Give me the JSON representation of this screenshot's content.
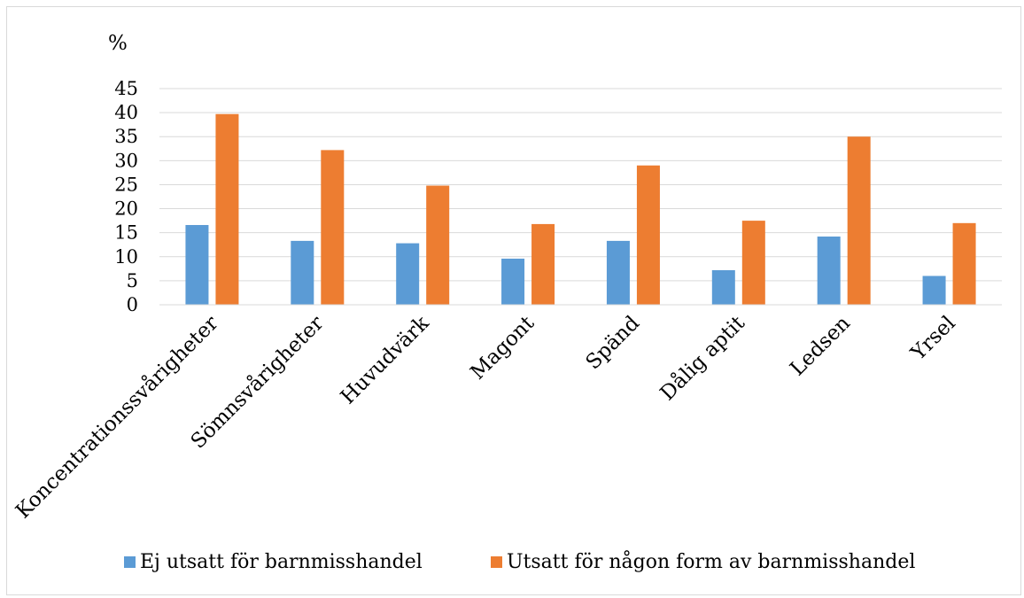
{
  "chart_data": {
    "type": "bar",
    "unit_label": "%",
    "categories": [
      "Koncentrationssvårigheter",
      "Sömnsvårigheter",
      "Huvudvärk",
      "Magont",
      "Spänd",
      "Dålig aptit",
      "Ledsen",
      "Yrsel"
    ],
    "series": [
      {
        "name": "Ej utsatt för barnmisshandel",
        "color": "#5b9bd5",
        "values": [
          16.6,
          13.3,
          12.8,
          9.6,
          13.3,
          7.2,
          14.2,
          6.0
        ]
      },
      {
        "name": "Utsatt för någon form av barnmisshandel",
        "color": "#ed7d31",
        "values": [
          39.7,
          32.2,
          24.8,
          16.8,
          29.0,
          17.5,
          35.0,
          17.0
        ]
      }
    ],
    "ylim": [
      0,
      45
    ],
    "yticks": [
      0,
      5,
      10,
      15,
      20,
      25,
      30,
      35,
      40,
      45
    ],
    "grid": true,
    "legend_position": "bottom"
  }
}
